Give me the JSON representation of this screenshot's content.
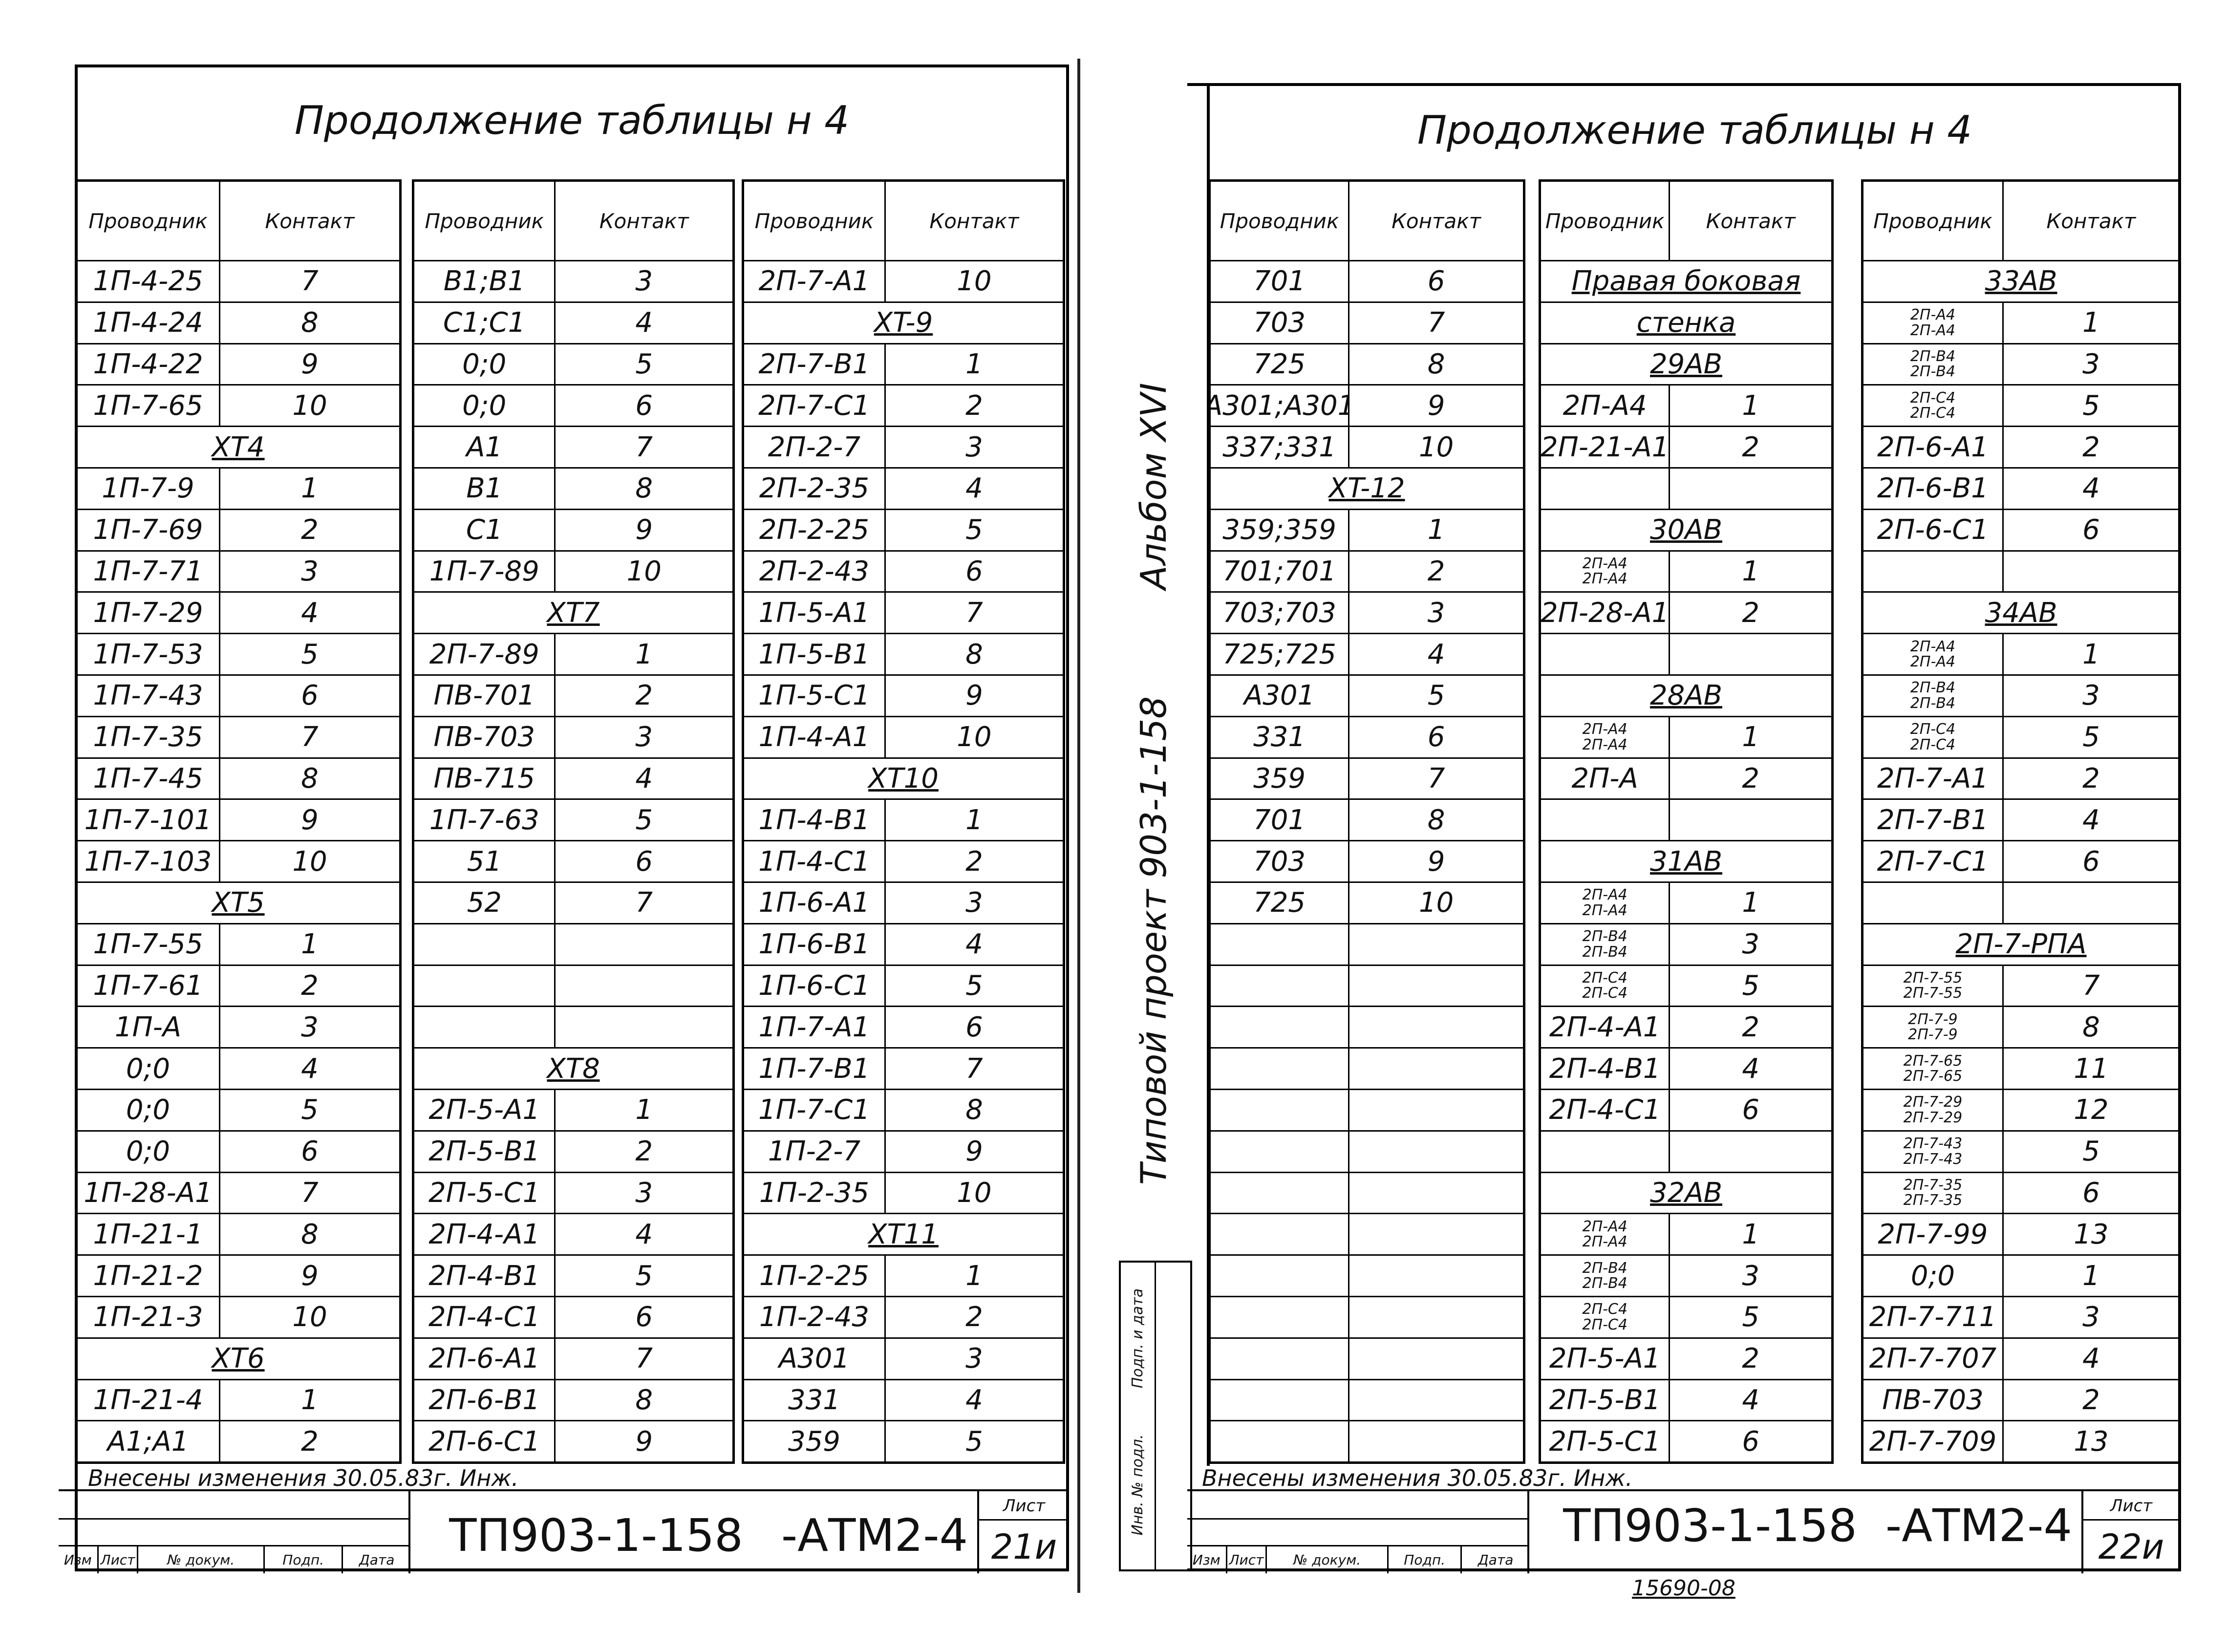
{
  "left_sheet": {
    "title": "Продолжение таблицы н 4",
    "footer": {
      "note": "Внесены изменения 30.05.83г. Инж.",
      "code": "ТП903-1-158",
      "sheet_code": "-АТМ2-4",
      "sheet_label": "Лист",
      "sheet_number": "21и",
      "columns": [
        "Изм",
        "Лист",
        "№ докум.",
        "Подп.",
        "Дата"
      ]
    }
  },
  "right_sheet": {
    "title": "Продолжение таблицы н 4",
    "footer": {
      "note": "Внесены изменения 30.05.83г. Инж.",
      "code": "ТП903-1-158",
      "sheet_code": "-АТМ2-4",
      "sheet_label": "Лист",
      "sheet_number": "22и",
      "columns": [
        "Изм",
        "Лист",
        "№ докум.",
        "Подп.",
        "Дата"
      ]
    },
    "archive_number": "15690-08"
  },
  "margin": {
    "album": "Альбом XVI",
    "project": "Типовой проект 903-1-158",
    "stamp": [
      "Инв. № подл.",
      "Подп. и дата"
    ]
  },
  "tables": [
    {
      "header": [
        "Проводник",
        "Контакт"
      ],
      "rows": [
        [
          "1П-4-25",
          7
        ],
        [
          "1П-4-24",
          8
        ],
        [
          "1П-4-22",
          9
        ],
        [
          "1П-7-65",
          10
        ],
        [
          "XT4"
        ],
        [
          "1П-7-9",
          1
        ],
        [
          "1П-7-69",
          2
        ],
        [
          "1П-7-71",
          3
        ],
        [
          "1П-7-29",
          4
        ],
        [
          "1П-7-53",
          5
        ],
        [
          "1П-7-43",
          6
        ],
        [
          "1П-7-35",
          7
        ],
        [
          "1П-7-45",
          8
        ],
        [
          "1П-7-101",
          9
        ],
        [
          "1П-7-103",
          10
        ],
        [
          "XT5"
        ],
        [
          "1П-7-55",
          1
        ],
        [
          "1П-7-61",
          2
        ],
        [
          "1П-А",
          3
        ],
        [
          "0;0",
          4
        ],
        [
          "0;0",
          5
        ],
        [
          "0;0",
          6
        ],
        [
          "1П-28-А1",
          7
        ],
        [
          "1П-21-1",
          8
        ],
        [
          "1П-21-2",
          9
        ],
        [
          "1П-21-3",
          10
        ],
        [
          "XT6"
        ],
        [
          "1П-21-4",
          1
        ],
        [
          "А1;А1",
          2
        ]
      ]
    },
    {
      "header": [
        "Проводник",
        "Контакт"
      ],
      "rows": [
        [
          "В1;В1",
          3
        ],
        [
          "С1;С1",
          4
        ],
        [
          "0;0",
          5
        ],
        [
          "0;0",
          6
        ],
        [
          "А1",
          7
        ],
        [
          "В1",
          8
        ],
        [
          "С1",
          9
        ],
        [
          "1П-7-89",
          10
        ],
        [
          "XT7"
        ],
        [
          "2П-7-89",
          1
        ],
        [
          "ПВ-701",
          2
        ],
        [
          "ПВ-703",
          3
        ],
        [
          "ПВ-715",
          4
        ],
        [
          "1П-7-63",
          5
        ],
        [
          "51",
          6
        ],
        [
          "52",
          7
        ],
        [],
        [],
        [],
        [
          "XT8"
        ],
        [
          "2П-5-А1",
          1
        ],
        [
          "2П-5-В1",
          2
        ],
        [
          "2П-5-С1",
          3
        ],
        [
          "2П-4-А1",
          4
        ],
        [
          "2П-4-В1",
          5
        ],
        [
          "2П-4-С1",
          6
        ],
        [
          "2П-6-А1",
          7
        ],
        [
          "2П-6-В1",
          8
        ],
        [
          "2П-6-С1",
          9
        ]
      ]
    },
    {
      "header": [
        "Проводник",
        "Контакт"
      ],
      "rows": [
        [
          "2П-7-А1",
          10
        ],
        [
          "XT-9"
        ],
        [
          "2П-7-В1",
          1
        ],
        [
          "2П-7-С1",
          2
        ],
        [
          "2П-2-7",
          3
        ],
        [
          "2П-2-35",
          4
        ],
        [
          "2П-2-25",
          5
        ],
        [
          "2П-2-43",
          6
        ],
        [
          "1П-5-А1",
          7
        ],
        [
          "1П-5-В1",
          8
        ],
        [
          "1П-5-С1",
          9
        ],
        [
          "1П-4-А1",
          10
        ],
        [
          "XT10"
        ],
        [
          "1П-4-В1",
          1
        ],
        [
          "1П-4-С1",
          2
        ],
        [
          "1П-6-А1",
          3
        ],
        [
          "1П-6-В1",
          4
        ],
        [
          "1П-6-С1",
          5
        ],
        [
          "1П-7-А1",
          6
        ],
        [
          "1П-7-В1",
          7
        ],
        [
          "1П-7-С1",
          8
        ],
        [
          "1П-2-7",
          9
        ],
        [
          "1П-2-35",
          10
        ],
        [
          "XT11"
        ],
        [
          "1П-2-25",
          1
        ],
        [
          "1П-2-43",
          2
        ],
        [
          "А301",
          3
        ],
        [
          "331",
          4
        ],
        [
          "359",
          5
        ]
      ]
    },
    {
      "header": [
        "Проводник",
        "Контакт"
      ],
      "rows": [
        [
          "701",
          6
        ],
        [
          "703",
          7
        ],
        [
          "725",
          8
        ],
        [
          "А301;А301",
          9
        ],
        [
          "337;331",
          10
        ],
        [
          "XT-12"
        ],
        [
          "359;359",
          1
        ],
        [
          "701;701",
          2
        ],
        [
          "703;703",
          3
        ],
        [
          "725;725",
          4
        ],
        [
          "А301",
          5
        ],
        [
          "331",
          6
        ],
        [
          "359",
          7
        ],
        [
          "701",
          8
        ],
        [
          "703",
          9
        ],
        [
          "725",
          10
        ],
        [],
        [],
        [],
        [],
        [],
        [],
        [],
        [],
        [],
        [],
        [],
        [],
        []
      ]
    },
    {
      "header": [
        "Проводник",
        "Контакт"
      ],
      "rows": [
        [
          "Правая боковая"
        ],
        [
          "стенка"
        ],
        [
          "29АВ"
        ],
        [
          "2П-А4",
          1
        ],
        [
          "2П-21-А1",
          2
        ],
        [],
        [
          "30АВ"
        ],
        [
          "2П-А4",
          "2П-А4",
          1
        ],
        [
          "2П-28-А1",
          2
        ],
        [],
        [
          "28АВ"
        ],
        [
          "2П-А4",
          "2П-А4",
          1
        ],
        [
          "2П-А",
          2
        ],
        [],
        [
          "31АВ"
        ],
        [
          "2П-А4",
          "2П-А4",
          1
        ],
        [
          "2П-В4",
          "2П-В4",
          3
        ],
        [
          "2П-С4",
          "2П-С4",
          5
        ],
        [
          "2П-4-А1",
          2
        ],
        [
          "2П-4-В1",
          4
        ],
        [
          "2П-4-С1",
          6
        ],
        [],
        [
          "32АВ"
        ],
        [
          "2П-А4",
          "2П-А4",
          1
        ],
        [
          "2П-В4",
          "2П-В4",
          3
        ],
        [
          "2П-С4",
          "2П-С4",
          5
        ],
        [
          "2П-5-А1",
          2
        ],
        [
          "2П-5-В1",
          4
        ],
        [
          "2П-5-С1",
          6
        ]
      ]
    },
    {
      "header": [
        "Проводник",
        "Контакт"
      ],
      "rows": [
        [
          "33АВ"
        ],
        [
          "2П-А4",
          "2П-А4",
          1
        ],
        [
          "2П-В4",
          "2П-В4",
          3
        ],
        [
          "2П-С4",
          "2П-С4",
          5
        ],
        [
          "2П-6-А1",
          2
        ],
        [
          "2П-6-В1",
          4
        ],
        [
          "2П-6-С1",
          6
        ],
        [],
        [
          "34АВ"
        ],
        [
          "2П-А4",
          "2П-А4",
          1
        ],
        [
          "2П-В4",
          "2П-В4",
          3
        ],
        [
          "2П-С4",
          "2П-С4",
          5
        ],
        [
          "2П-7-А1",
          2
        ],
        [
          "2П-7-В1",
          4
        ],
        [
          "2П-7-С1",
          6
        ],
        [],
        [
          "2П-7-РПА"
        ],
        [
          "2П-7-55",
          "2П-7-55",
          7
        ],
        [
          "2П-7-9",
          "2П-7-9",
          8
        ],
        [
          "2П-7-65",
          "2П-7-65",
          11
        ],
        [
          "2П-7-29",
          "2П-7-29",
          12
        ],
        [
          "2П-7-43",
          "2П-7-43",
          5
        ],
        [
          "2П-7-35",
          "2П-7-35",
          6
        ],
        [
          "2П-7-99",
          13
        ],
        [
          "0;0",
          1
        ],
        [
          "2П-7-711",
          3
        ],
        [
          "2П-7-707",
          4
        ],
        [
          "ПВ-703",
          2
        ],
        [
          "2П-7-709",
          13
        ]
      ]
    }
  ]
}
